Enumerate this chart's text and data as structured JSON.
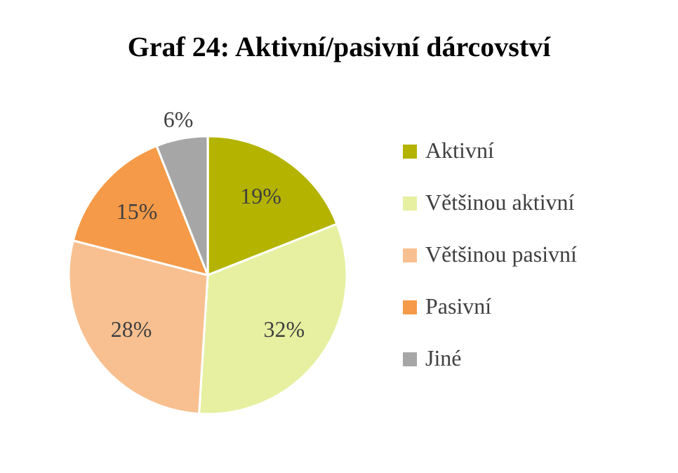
{
  "chart_data": {
    "type": "pie",
    "title": "Graf 24: Aktivní/pasivní dárcovství",
    "categories": [
      "Aktivní",
      "Většinou aktivní",
      "Většinou pasivní",
      "Pasivní",
      "Jiné"
    ],
    "values": [
      19,
      32,
      28,
      15,
      6
    ],
    "colors": [
      "#b3b300",
      "#e6f0a0",
      "#f8c090",
      "#f59a48",
      "#a6a6a6"
    ],
    "value_labels": [
      "19%",
      "32%",
      "28%",
      "15%",
      "6%"
    ],
    "legend": "right"
  }
}
